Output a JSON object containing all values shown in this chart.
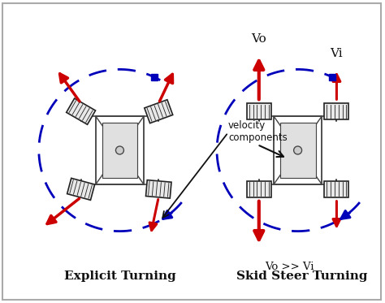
{
  "fig_width": 4.74,
  "fig_height": 3.73,
  "dpi": 100,
  "bg_color": "#ffffff",
  "border_color": "#aaaaaa",
  "title_left": "Explicit Turning",
  "title_right": "Skid Steer Turning",
  "label_vo": "Vo",
  "label_vi": "Vi",
  "label_vo_vi": "Vo >> Vi",
  "label_velocity": "velocity\ncomponents",
  "red_color": "#cc0000",
  "blue_color": "#0000bb",
  "black_color": "#111111",
  "tire_face": "#e8e8e8",
  "tire_edge": "#222222",
  "frame_color": "#444444"
}
